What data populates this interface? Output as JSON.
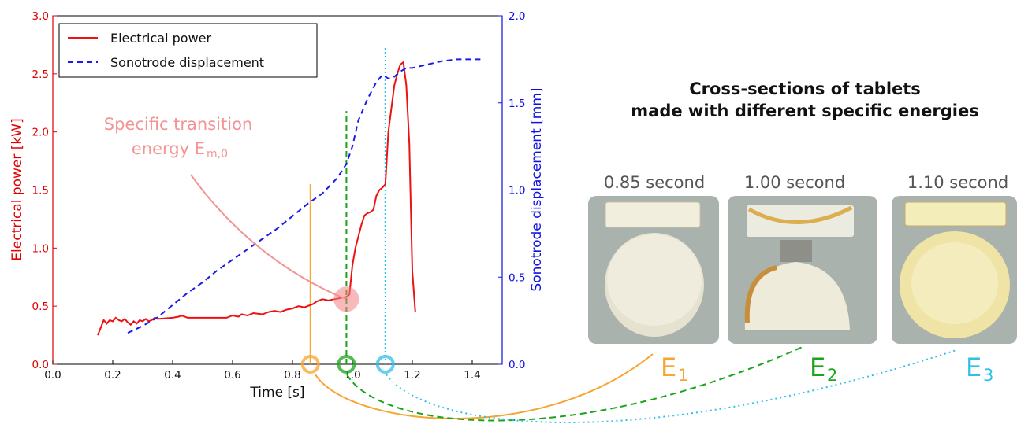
{
  "chart_data": {
    "type": "line",
    "xlabel": "Time [s]",
    "ylabel": "Electrical power [kW]",
    "y2label": "Sonotrode displacement [mm]",
    "xlim": [
      0.0,
      1.5
    ],
    "ylim": [
      0.0,
      3.0
    ],
    "y2lim": [
      0.0,
      2.0
    ],
    "x_ticks": [
      "0.0",
      "0.2",
      "0.4",
      "0.6",
      "0.8",
      "1.0",
      "1.2",
      "1.4"
    ],
    "y_ticks": [
      "0.0",
      "0.5",
      "1.0",
      "1.5",
      "2.0",
      "2.5",
      "3.0"
    ],
    "y2_ticks": [
      "0.0",
      "0.5",
      "1.0",
      "1.5",
      "2.0"
    ],
    "legend_position": "top-left",
    "grid": false,
    "series": [
      {
        "name": "Electrical power",
        "axis": "left",
        "color": "#ee1111",
        "style": "solid",
        "x": [
          0.15,
          0.17,
          0.18,
          0.19,
          0.2,
          0.21,
          0.22,
          0.23,
          0.24,
          0.25,
          0.26,
          0.27,
          0.28,
          0.29,
          0.3,
          0.31,
          0.32,
          0.33,
          0.34,
          0.35,
          0.4,
          0.42,
          0.43,
          0.45,
          0.5,
          0.55,
          0.58,
          0.6,
          0.62,
          0.63,
          0.65,
          0.67,
          0.7,
          0.72,
          0.74,
          0.76,
          0.78,
          0.8,
          0.82,
          0.84,
          0.86,
          0.87,
          0.88,
          0.9,
          0.92,
          0.94,
          0.96,
          0.98,
          0.99,
          1.0,
          1.01,
          1.02,
          1.03,
          1.04,
          1.05,
          1.06,
          1.07,
          1.08,
          1.09,
          1.1,
          1.11,
          1.12,
          1.13,
          1.14,
          1.15,
          1.16,
          1.17,
          1.18,
          1.19,
          1.2,
          1.21
        ],
        "y": [
          0.25,
          0.38,
          0.35,
          0.38,
          0.37,
          0.4,
          0.38,
          0.37,
          0.39,
          0.36,
          0.34,
          0.37,
          0.35,
          0.38,
          0.37,
          0.39,
          0.37,
          0.38,
          0.4,
          0.39,
          0.4,
          0.41,
          0.42,
          0.4,
          0.4,
          0.4,
          0.4,
          0.42,
          0.41,
          0.43,
          0.42,
          0.44,
          0.43,
          0.45,
          0.46,
          0.45,
          0.47,
          0.48,
          0.5,
          0.49,
          0.51,
          0.52,
          0.54,
          0.56,
          0.55,
          0.56,
          0.57,
          0.58,
          0.6,
          0.85,
          1.0,
          1.1,
          1.2,
          1.28,
          1.3,
          1.31,
          1.33,
          1.45,
          1.5,
          1.52,
          1.55,
          2.0,
          2.2,
          2.4,
          2.5,
          2.58,
          2.6,
          2.4,
          1.9,
          0.8,
          0.45
        ]
      },
      {
        "name": "Sonotrode displacement",
        "axis": "right",
        "color": "#1a1aee",
        "style": "dashed",
        "x": [
          0.25,
          0.3,
          0.35,
          0.4,
          0.45,
          0.5,
          0.55,
          0.6,
          0.65,
          0.7,
          0.75,
          0.8,
          0.85,
          0.9,
          0.95,
          0.98,
          1.0,
          1.02,
          1.05,
          1.08,
          1.1,
          1.12,
          1.14,
          1.16,
          1.18,
          1.2,
          1.25,
          1.3,
          1.35,
          1.4,
          1.44
        ],
        "y": [
          0.18,
          0.22,
          0.27,
          0.34,
          0.41,
          0.47,
          0.54,
          0.6,
          0.66,
          0.72,
          0.78,
          0.85,
          0.92,
          0.98,
          1.07,
          1.15,
          1.25,
          1.4,
          1.52,
          1.62,
          1.66,
          1.64,
          1.65,
          1.68,
          1.7,
          1.7,
          1.72,
          1.74,
          1.75,
          1.75,
          1.75
        ]
      }
    ],
    "vlines": [
      {
        "x": 0.86,
        "ymax": 1.55,
        "color": "#f7a531",
        "style": "solid",
        "label": "E1"
      },
      {
        "x": 0.98,
        "ymax": 2.18,
        "color": "#1aa41a",
        "style": "dashed",
        "label": "E2"
      },
      {
        "x": 1.11,
        "ymax": 2.73,
        "color": "#2fc0e8",
        "style": "dotted",
        "label": "E3"
      }
    ],
    "marker": {
      "x": 0.98,
      "y": 0.56
    },
    "annotation_line1": "Specific transition",
    "annotation_line2": "energy E",
    "annotation_sub": "m,0"
  },
  "photos": {
    "title_line1": "Cross-sections of tablets",
    "title_line2": "made with different specific energies",
    "items": [
      {
        "duration": "0.85 second",
        "energy": "E",
        "energy_sub": "1",
        "color": "#f7a531"
      },
      {
        "duration": "1.00 second",
        "energy": "E",
        "energy_sub": "2",
        "color": "#1aa41a"
      },
      {
        "duration": "1.10 second",
        "energy": "E",
        "energy_sub": "3",
        "color": "#2fc0e8"
      }
    ]
  }
}
